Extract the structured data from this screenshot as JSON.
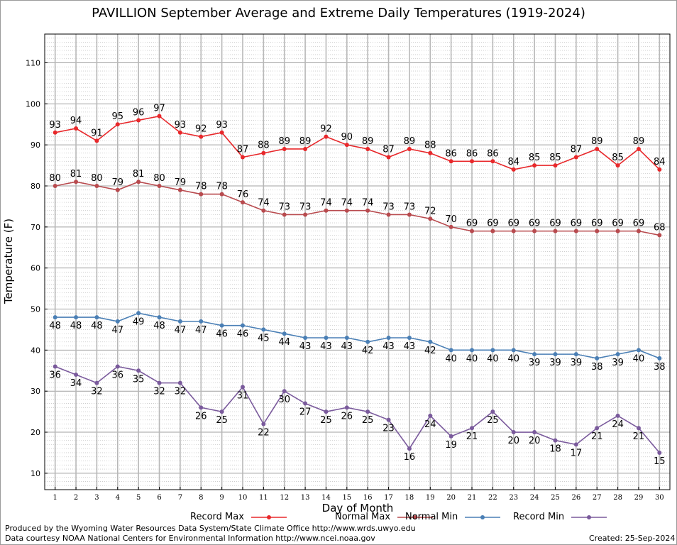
{
  "chart_data": {
    "type": "line",
    "title": "PAVILLION September Average and Extreme Daily Temperatures (1919-2024)",
    "xlabel": "Day of Month",
    "ylabel": "Temperature (F)",
    "xlim": [
      0.5,
      30.5
    ],
    "ylim": [
      6,
      117
    ],
    "yticks": [
      10,
      20,
      30,
      40,
      50,
      60,
      70,
      80,
      90,
      100,
      110
    ],
    "x": [
      1,
      2,
      3,
      4,
      5,
      6,
      7,
      8,
      9,
      10,
      11,
      12,
      13,
      14,
      15,
      16,
      17,
      18,
      19,
      20,
      21,
      22,
      23,
      24,
      25,
      26,
      27,
      28,
      29,
      30
    ],
    "grid": true,
    "legend": "bottom",
    "series": [
      {
        "name": "Record Max",
        "color": "#e8282b",
        "label_pos": "above",
        "values": [
          93,
          94,
          91,
          95,
          96,
          97,
          93,
          92,
          93,
          87,
          88,
          89,
          89,
          92,
          90,
          89,
          87,
          89,
          88,
          86,
          86,
          86,
          84,
          85,
          85,
          87,
          89,
          85,
          89,
          84
        ]
      },
      {
        "name": "Normal Max",
        "color": "#b84a4e",
        "label_pos": "above",
        "values": [
          80,
          81,
          80,
          79,
          81,
          80,
          79,
          78,
          78,
          76,
          74,
          73,
          73,
          74,
          74,
          74,
          73,
          73,
          72,
          70,
          69,
          69,
          69,
          69,
          69,
          69,
          69,
          69,
          69,
          68
        ]
      },
      {
        "name": "Normal Min",
        "color": "#4a7fb5",
        "label_pos": "below",
        "values": [
          48,
          48,
          48,
          47,
          49,
          48,
          47,
          47,
          46,
          46,
          45,
          44,
          43,
          43,
          43,
          42,
          43,
          43,
          42,
          40,
          40,
          40,
          40,
          39,
          39,
          39,
          38,
          39,
          40,
          38
        ]
      },
      {
        "name": "Record Min",
        "color": "#7a5a9c",
        "label_pos": "below",
        "values": [
          36,
          34,
          32,
          36,
          35,
          32,
          32,
          26,
          25,
          31,
          22,
          30,
          27,
          25,
          26,
          25,
          23,
          16,
          24,
          19,
          21,
          25,
          20,
          20,
          18,
          17,
          21,
          24,
          21,
          15
        ]
      }
    ]
  },
  "footer": {
    "credit_line1": "Produced by the Wyoming Water Resources Data System/State Climate Office http://www.wrds.uwyo.edu",
    "credit_line2": "Data courtesy NOAA National Centers for Environmental Information http://www.ncei.noaa.gov",
    "created": "Created:  25-Sep-2024"
  }
}
